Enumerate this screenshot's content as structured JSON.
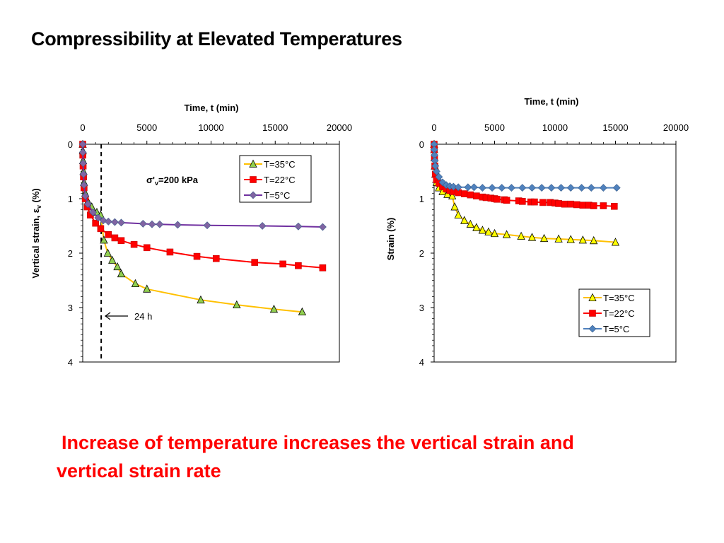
{
  "slide": {
    "title": "Compressibility at Elevated Temperatures",
    "caption_line1": "Increase of temperature increases the vertical strain and",
    "caption_line2": "vertical strain rate"
  },
  "colors": {
    "T35": "#FFC000",
    "T35_marker": "#92D050",
    "T22": "#FF0000",
    "T5_left": "#7030A0",
    "T5_left_marker": "#8064A2",
    "T5_right": "#4F81BD",
    "caption": "#FF0000"
  },
  "chart_data": [
    {
      "type": "line",
      "xlabel": "Time, t (min)",
      "ylabel_main": "Vertical strain, ε",
      "ylabel_sub": "v",
      "ylabel_tail": " (%)",
      "xlim": [
        0,
        20000
      ],
      "ylim": [
        0,
        4
      ],
      "x_ticks": [
        "0",
        "5000",
        "10000",
        "15000",
        "20000"
      ],
      "y_ticks": [
        "0",
        "1",
        "2",
        "3",
        "4"
      ],
      "x_axis_position": "top",
      "y_inverted": true,
      "grid": false,
      "legend_position": "top-right",
      "annotation_stress_main": "σ'",
      "annotation_stress_sub": "v",
      "annotation_stress_tail": "=200 kPa",
      "annotation_24h": "24 h",
      "vline_x": 1440,
      "series": [
        {
          "name": "T=35°C",
          "line_color": "#FFC000",
          "marker": "triangle",
          "x": [
            0,
            10,
            30,
            60,
            100,
            200,
            400,
            700,
            1100,
            1400,
            1650,
            1950,
            2300,
            2700,
            3000,
            4100,
            5000,
            9200,
            12000,
            14900,
            17100
          ],
          "y": [
            0,
            0.12,
            0.3,
            0.5,
            0.7,
            0.9,
            1.05,
            1.15,
            1.25,
            1.3,
            1.76,
            2.0,
            2.13,
            2.25,
            2.38,
            2.56,
            2.66,
            2.86,
            2.95,
            3.03,
            3.08
          ]
        },
        {
          "name": "T=22°C",
          "line_color": "#FF0000",
          "marker": "square",
          "x": [
            0,
            10,
            30,
            60,
            100,
            200,
            350,
            600,
            1000,
            1400,
            2000,
            2500,
            3000,
            4000,
            5000,
            6800,
            8900,
            10400,
            13400,
            15600,
            16800,
            18700
          ],
          "y": [
            0,
            0.2,
            0.4,
            0.6,
            0.8,
            1.0,
            1.15,
            1.3,
            1.45,
            1.55,
            1.66,
            1.72,
            1.77,
            1.84,
            1.9,
            1.98,
            2.06,
            2.1,
            2.17,
            2.2,
            2.23,
            2.27
          ]
        },
        {
          "name": "T=5°C",
          "line_color": "#7030A0",
          "marker": "diamond",
          "x": [
            0,
            10,
            30,
            60,
            100,
            200,
            400,
            800,
            1200,
            1600,
            2000,
            2500,
            3000,
            4700,
            5400,
            6000,
            7400,
            9700,
            14000,
            16800,
            18700
          ],
          "y": [
            0,
            0.15,
            0.35,
            0.55,
            0.75,
            0.95,
            1.1,
            1.25,
            1.35,
            1.4,
            1.42,
            1.43,
            1.44,
            1.46,
            1.47,
            1.47,
            1.48,
            1.49,
            1.5,
            1.51,
            1.52
          ]
        }
      ]
    },
    {
      "type": "line",
      "xlabel": "Time, t (min)",
      "ylabel_main": "Strain (%)",
      "xlim": [
        0,
        20000
      ],
      "ylim": [
        0,
        4
      ],
      "x_ticks": [
        "0",
        "5000",
        "10000",
        "15000",
        "20000"
      ],
      "y_ticks": [
        "0",
        "1",
        "2",
        "3",
        "4"
      ],
      "x_axis_position": "top",
      "y_inverted": true,
      "grid": false,
      "legend_position": "bottom-right",
      "series": [
        {
          "name": "T=35°C",
          "line_color": "#FFC000",
          "marker": "triangle",
          "x": [
            0,
            10,
            30,
            60,
            100,
            200,
            400,
            700,
            1100,
            1500,
            1700,
            2000,
            2500,
            3000,
            3500,
            4000,
            4500,
            5000,
            6000,
            7200,
            8100,
            9100,
            10300,
            11300,
            12300,
            13200,
            15000
          ],
          "y": [
            0,
            0.1,
            0.25,
            0.4,
            0.55,
            0.7,
            0.8,
            0.87,
            0.92,
            0.95,
            1.15,
            1.3,
            1.4,
            1.47,
            1.53,
            1.58,
            1.61,
            1.64,
            1.66,
            1.69,
            1.71,
            1.73,
            1.74,
            1.75,
            1.76,
            1.77,
            1.8
          ]
        },
        {
          "name": "T=22°C",
          "line_color": "#FF0000",
          "marker": "square",
          "x": [
            0,
            10,
            30,
            60,
            100,
            200,
            400,
            700,
            1000,
            1300,
            1600,
            2000,
            2500,
            3000,
            3500,
            4000,
            4300,
            4700,
            5000,
            5200,
            5800,
            6000,
            7000,
            7300,
            8000,
            8300,
            9000,
            9600,
            10000,
            10300,
            10800,
            11300,
            11800,
            12300,
            12800,
            13200,
            14000,
            14900
          ],
          "y": [
            0,
            0.1,
            0.25,
            0.4,
            0.55,
            0.65,
            0.72,
            0.78,
            0.82,
            0.85,
            0.87,
            0.89,
            0.91,
            0.93,
            0.95,
            0.97,
            0.98,
            0.99,
            1.0,
            1.01,
            1.02,
            1.03,
            1.04,
            1.05,
            1.06,
            1.06,
            1.07,
            1.07,
            1.08,
            1.09,
            1.1,
            1.1,
            1.11,
            1.12,
            1.12,
            1.13,
            1.13,
            1.14
          ]
        },
        {
          "name": "T=5°C",
          "line_color": "#4F81BD",
          "marker": "diamond",
          "x": [
            0,
            10,
            30,
            60,
            100,
            200,
            400,
            700,
            1000,
            1300,
            1600,
            2000,
            2800,
            3300,
            4000,
            4800,
            5600,
            6400,
            7300,
            8100,
            8900,
            9700,
            10500,
            11300,
            12200,
            13000,
            14000,
            15100
          ],
          "y": [
            0,
            0.1,
            0.2,
            0.3,
            0.4,
            0.5,
            0.6,
            0.7,
            0.75,
            0.77,
            0.78,
            0.79,
            0.79,
            0.79,
            0.8,
            0.8,
            0.8,
            0.8,
            0.8,
            0.8,
            0.8,
            0.8,
            0.8,
            0.8,
            0.8,
            0.8,
            0.8,
            0.8
          ]
        }
      ]
    }
  ]
}
